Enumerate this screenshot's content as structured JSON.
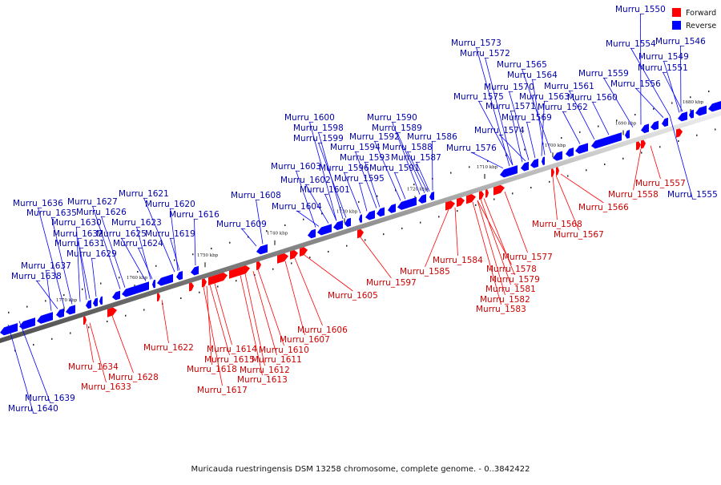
{
  "caption": "Muricauda ruestringensis DSM 13258 chromosome, complete genome. - 0..3842422",
  "legend": [
    {
      "label": "Forward",
      "color": "#ff0000"
    },
    {
      "label": "Reverse",
      "color": "#0000ff"
    }
  ],
  "colors": {
    "forward": "#ff0000",
    "reverse": "#0000ff",
    "forward_label": "#cc0000",
    "reverse_label": "#0000aa",
    "axis": "#808080"
  },
  "ticks": [
    "1680 kbp",
    "1690 kbp",
    "1700 kbp",
    "1710 kbp",
    "1720 kbp",
    "1730 kbp",
    "1740 kbp",
    "1750 kbp",
    "1760 kbp",
    "1770 kbp"
  ],
  "reverse_genes": [
    "Murru_1550",
    "Murru_1546",
    "Murru_1554",
    "Murru_1549",
    "Murru_1551",
    "Murru_1559",
    "Murru_1556",
    "Murru_1561",
    "Murru_1560",
    "Murru_1565",
    "Murru_1564",
    "Murru_1563",
    "Murru_1562",
    "Murru_1573",
    "Murru_1572",
    "Murru_1570",
    "Murru_1575",
    "Murru_1571",
    "Murru_1569",
    "Murru_1574",
    "Murru_1576",
    "Murru_1590",
    "Murru_1589",
    "Murru_1592",
    "Murru_1588",
    "Murru_1586",
    "Murru_1587",
    "Murru_1594",
    "Murru_1593",
    "Murru_1591",
    "Murru_1600",
    "Murru_1598",
    "Murru_1599",
    "Murru_1596",
    "Murru_1595",
    "Murru_1603",
    "Murru_1602",
    "Murru_1601",
    "Murru_1604",
    "Murru_1608",
    "Murru_1609",
    "Murru_1621",
    "Murru_1620",
    "Murru_1616",
    "Murru_1627",
    "Murru_1626",
    "Murru_1623",
    "Murru_1619",
    "Murru_1625",
    "Murru_1624",
    "Murru_1636",
    "Murru_1635",
    "Murru_1630",
    "Murru_1632",
    "Murru_1631",
    "Murru_1629",
    "Murru_1637",
    "Murru_1638",
    "Murru_1555",
    "Murru_1639",
    "Murru_1640"
  ],
  "forward_genes": [
    "Murru_1557",
    "Murru_1558",
    "Murru_1566",
    "Murru_1568",
    "Murru_1567",
    "Murru_1577",
    "Murru_1584",
    "Murru_1578",
    "Murru_1579",
    "Murru_1581",
    "Murru_1582",
    "Murru_1583",
    "Murru_1585",
    "Murru_1597",
    "Murru_1605",
    "Murru_1606",
    "Murru_1607",
    "Murru_1610",
    "Murru_1611",
    "Murru_1612",
    "Murru_1613",
    "Murru_1614",
    "Murru_1615",
    "Murru_1618",
    "Murru_1617",
    "Murru_1622",
    "Murru_1634",
    "Murru_1628",
    "Murru_1633"
  ]
}
